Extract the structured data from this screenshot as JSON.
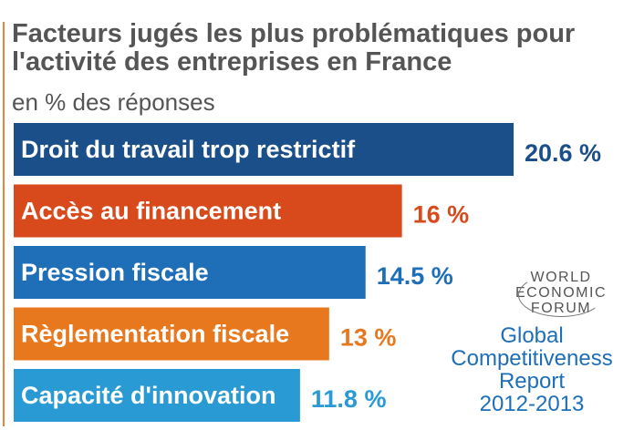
{
  "chart_data": {
    "type": "bar",
    "orientation": "horizontal",
    "title": "Facteurs jugés les plus problématiques pour l'activité des entreprises en France",
    "subtitle": "en % des réponses",
    "categories": [
      "Droit du travail trop restrictif",
      "Accès au financement",
      "Pression fiscale",
      "Règlementation fiscale",
      "Capacité d'innovation"
    ],
    "values": [
      20.6,
      16,
      14.5,
      13,
      11.8
    ],
    "value_labels": [
      "20.6 %",
      "16 %",
      "14.5 %",
      "13 %",
      "11.8 %"
    ],
    "colors": [
      "#1b4f8a",
      "#d84a1b",
      "#1e6fb8",
      "#e8781e",
      "#2a9ad4"
    ],
    "grid": false,
    "legend": "none"
  },
  "logo": {
    "lines": [
      "WORLD",
      "ECONOMIC",
      "FORUM"
    ]
  },
  "source": {
    "lines": [
      "Global",
      "Competitiveness",
      "Report",
      "2012-2013"
    ]
  }
}
